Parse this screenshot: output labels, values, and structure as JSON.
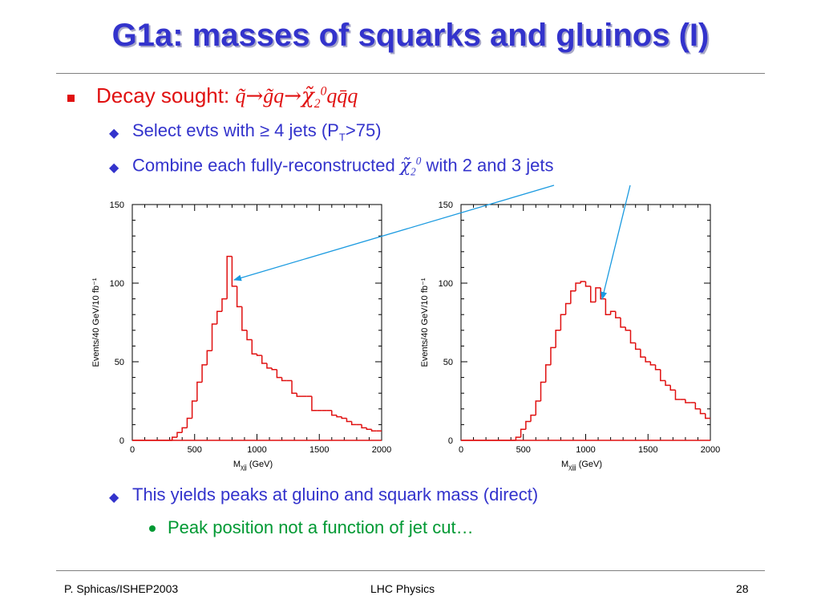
{
  "slide": {
    "title": "G1a: masses of squarks and gluinos (I)"
  },
  "bullets": {
    "decay_prefix": "Decay sought: ",
    "decay_q1": "q̃",
    "decay_arrow": "→",
    "decay_gq": "g̃q",
    "decay_chi": "χ̃",
    "decay_chi_sub": "2",
    "decay_chi_sup": "0",
    "decay_tail": "qq̄q",
    "select_prefix": "Select evts with ≥ 4 jets (P",
    "select_sub": "T",
    "select_suffix": ">75)",
    "combine_prefix": "Combine each fully-reconstructed ",
    "combine_chi": "χ̃",
    "combine_sub": "2",
    "combine_sup": "0",
    "combine_suffix": " with 2 and 3 jets",
    "yields": "This yields peaks at gluino and squark mass (direct)",
    "peak": "Peak position not a function of jet cut…"
  },
  "footer": {
    "left": "P. Sphicas/ISHEP2003",
    "center": "LHC Physics",
    "right": "28"
  },
  "colors": {
    "title": "#3333cc",
    "histogram": "#e01010",
    "arrow": "#1a9ae0"
  },
  "chart_data": [
    {
      "type": "bar",
      "histogram": true,
      "ylabel": "Events/40 GeV/10 fb⁻¹",
      "xlabel": "M",
      "xlabel_sub": "χjj",
      "xlabel_unit": " (GeV)",
      "xlim": [
        0,
        2000
      ],
      "ylim": [
        0,
        150
      ],
      "xticks": [
        "0",
        "500",
        "1000",
        "1500",
        "2000"
      ],
      "yticks": [
        "0",
        "50",
        "100",
        "150"
      ],
      "bin_width": 40,
      "bin_edges_start": 0,
      "values": [
        0,
        0,
        0,
        0,
        0,
        0,
        0,
        0,
        2,
        5,
        8,
        14,
        25,
        37,
        48,
        57,
        74,
        82,
        90,
        117,
        98,
        85,
        70,
        64,
        55,
        54,
        49,
        46,
        45,
        40,
        38,
        38,
        30,
        28,
        28,
        28,
        19,
        19,
        19,
        19,
        16,
        15,
        14,
        12,
        10,
        10,
        8,
        7,
        6,
        6
      ]
    },
    {
      "type": "bar",
      "histogram": true,
      "ylabel": "Events/40 GeV/10 fb⁻¹",
      "xlabel": "M",
      "xlabel_sub": "χjjj",
      "xlabel_unit": " (GeV)",
      "xlim": [
        0,
        2000
      ],
      "ylim": [
        0,
        150
      ],
      "xticks": [
        "0",
        "500",
        "1000",
        "1500",
        "2000"
      ],
      "yticks": [
        "0",
        "50",
        "100",
        "150"
      ],
      "bin_width": 40,
      "bin_edges_start": 0,
      "values": [
        0,
        0,
        0,
        0,
        0,
        0,
        0,
        0,
        0,
        0,
        0,
        2,
        7,
        12,
        16,
        25,
        37,
        48,
        59,
        70,
        80,
        87,
        95,
        100,
        101,
        98,
        88,
        97,
        90,
        80,
        82,
        78,
        72,
        70,
        62,
        58,
        53,
        50,
        48,
        45,
        38,
        35,
        32,
        26,
        26,
        24,
        24,
        20,
        17,
        14
      ]
    }
  ]
}
